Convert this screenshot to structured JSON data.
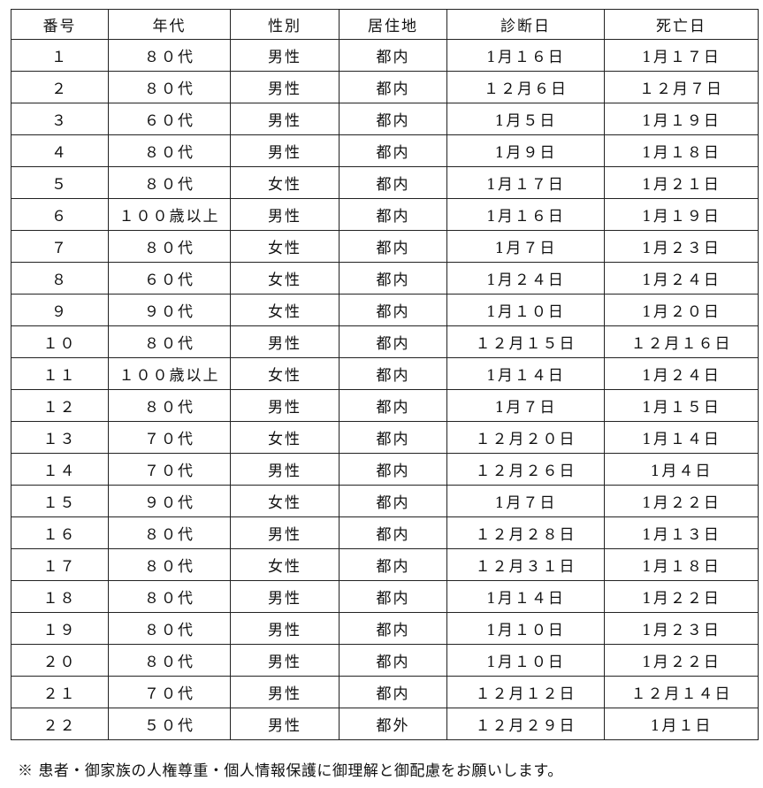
{
  "table": {
    "headers": [
      "番号",
      "年代",
      "性別",
      "居住地",
      "診断日",
      "死亡日"
    ],
    "rows": [
      [
        "１",
        "８０代",
        "男性",
        "都内",
        "1月１６日",
        "1月１７日"
      ],
      [
        "２",
        "８０代",
        "男性",
        "都内",
        "１２月６日",
        "１２月７日"
      ],
      [
        "３",
        "６０代",
        "男性",
        "都内",
        "1月５日",
        "1月１９日"
      ],
      [
        "４",
        "８０代",
        "男性",
        "都内",
        "1月９日",
        "1月１８日"
      ],
      [
        "５",
        "８０代",
        "女性",
        "都内",
        "1月１７日",
        "1月２１日"
      ],
      [
        "６",
        "１００歳以上",
        "男性",
        "都内",
        "1月１６日",
        "1月１９日"
      ],
      [
        "７",
        "８０代",
        "女性",
        "都内",
        "1月７日",
        "1月２３日"
      ],
      [
        "８",
        "６０代",
        "女性",
        "都内",
        "1月２４日",
        "1月２４日"
      ],
      [
        "９",
        "９０代",
        "女性",
        "都内",
        "1月１０日",
        "1月２０日"
      ],
      [
        "１０",
        "８０代",
        "男性",
        "都内",
        "１２月１５日",
        "１２月１６日"
      ],
      [
        "１１",
        "１００歳以上",
        "女性",
        "都内",
        "1月１４日",
        "1月２４日"
      ],
      [
        "１２",
        "８０代",
        "男性",
        "都内",
        "1月７日",
        "1月１５日"
      ],
      [
        "１３",
        "７０代",
        "女性",
        "都内",
        "１２月２０日",
        "1月１４日"
      ],
      [
        "１４",
        "７０代",
        "男性",
        "都内",
        "１２月２６日",
        "1月４日"
      ],
      [
        "１５",
        "９０代",
        "女性",
        "都内",
        "1月７日",
        "1月２２日"
      ],
      [
        "１６",
        "８０代",
        "男性",
        "都内",
        "１２月２８日",
        "1月１３日"
      ],
      [
        "１７",
        "８０代",
        "女性",
        "都内",
        "１２月３１日",
        "1月１８日"
      ],
      [
        "１８",
        "８０代",
        "男性",
        "都内",
        "1月１４日",
        "1月２２日"
      ],
      [
        "１９",
        "８０代",
        "男性",
        "都内",
        "1月１０日",
        "1月２３日"
      ],
      [
        "２０",
        "８０代",
        "男性",
        "都内",
        "1月１０日",
        "1月２２日"
      ],
      [
        "２１",
        "７０代",
        "男性",
        "都内",
        "１２月１２日",
        "１２月１４日"
      ],
      [
        "２２",
        "５０代",
        "男性",
        "都外",
        "１２月２９日",
        "1月１日"
      ]
    ]
  },
  "footnote": "※ 患者・御家族の人権尊重・個人情報保護に御理解と御配慮をお願いします。"
}
